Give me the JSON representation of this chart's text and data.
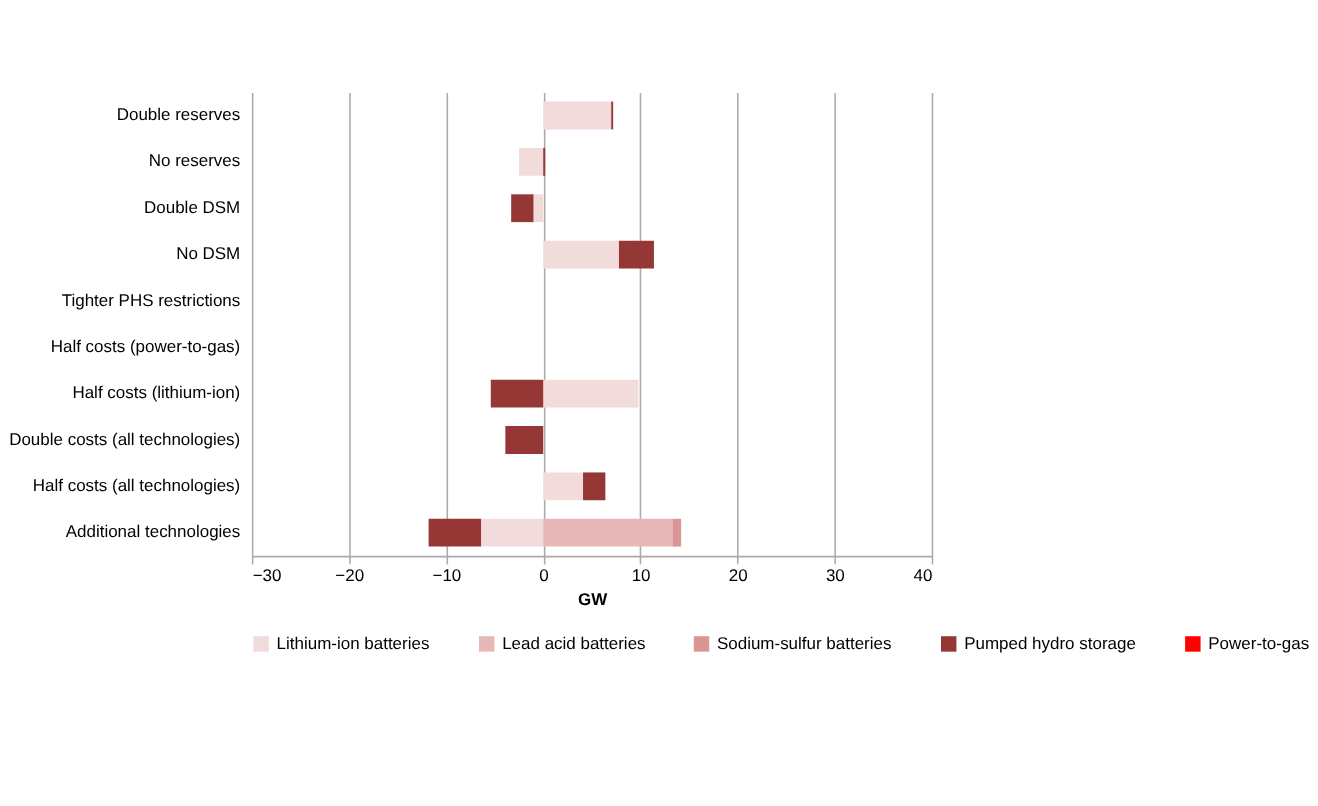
{
  "chart_data": {
    "type": "bar",
    "orientation": "horizontal",
    "stacked": true,
    "xlabel": "GW",
    "categories": [
      "Double reserves",
      "No reserves",
      "Double DSM",
      "No DSM",
      "Tighter PHS restrictions",
      "Half costs (power-to-gas)",
      "Half costs (lithium-ion)",
      "Double costs (all technologies)",
      "Half costs (all  technologies)",
      "Additional technologies"
    ],
    "series": [
      {
        "name": "Lithium-ion batteries",
        "color": "#f2dcdb",
        "values": [
          7.0,
          -2.5,
          -1.0,
          7.8,
          null,
          null,
          9.8,
          null,
          4.1,
          -6.4
        ]
      },
      {
        "name": "Lead acid batteries",
        "color": "#e6b9b8",
        "values": [
          null,
          null,
          null,
          null,
          null,
          null,
          null,
          null,
          null,
          13.3
        ]
      },
      {
        "name": "Sodium-sulfur batteries",
        "color": "#d99694",
        "values": [
          null,
          null,
          null,
          null,
          null,
          null,
          null,
          null,
          null,
          0.9
        ]
      },
      {
        "name": "Pumped hydro storage",
        "color": "#953735",
        "values": [
          0.2,
          0.2,
          -2.3,
          3.6,
          null,
          null,
          -5.4,
          -3.9,
          2.3,
          -5.4
        ]
      },
      {
        "name": "Power-to-gas",
        "color": "#ff0000",
        "values": [
          null,
          null,
          null,
          null,
          null,
          null,
          null,
          null,
          null,
          null
        ]
      }
    ],
    "xlim": [
      -30,
      40
    ],
    "xticks": [
      -30,
      -20,
      -10,
      0,
      10,
      20,
      30,
      40
    ],
    "grid": "x",
    "legend": "bottom"
  }
}
